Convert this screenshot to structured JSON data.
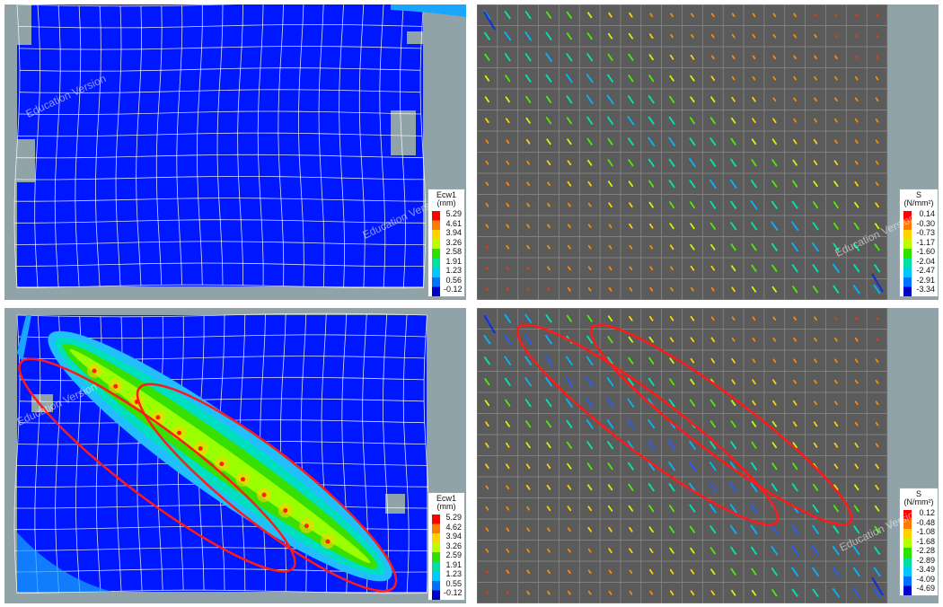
{
  "panels": [
    {
      "id": "top-left",
      "legend": {
        "title": "Ecw1",
        "unit": "(mm)",
        "values": [
          "5.29",
          "4.61",
          "3.94",
          "3.26",
          "2.58",
          "1.91",
          "1.23",
          "0.56",
          "-0.12"
        ]
      },
      "watermark": "Education Version"
    },
    {
      "id": "top-right",
      "legend": {
        "title": "S",
        "unit": "(N/mm²)",
        "values": [
          "0.14",
          "-0.30",
          "-0.73",
          "-1.17",
          "-1.60",
          "-2.04",
          "-2.47",
          "-2.91",
          "-3.34"
        ]
      },
      "watermark": "Education Version"
    },
    {
      "id": "bottom-left",
      "legend": {
        "title": "Ecw1",
        "unit": "(mm)",
        "values": [
          "5.29",
          "4.62",
          "3.94",
          "3.26",
          "2.59",
          "1.91",
          "1.23",
          "0.55",
          "-0.12"
        ]
      },
      "watermark": "Education Version"
    },
    {
      "id": "bottom-right",
      "legend": {
        "title": "S",
        "unit": "(N/mm²)",
        "values": [
          "0.12",
          "-0.48",
          "-1.08",
          "-1.68",
          "-2.28",
          "-2.89",
          "-3.49",
          "-4.09",
          "-4.69"
        ]
      },
      "watermark": "Education Version"
    }
  ],
  "colors": {
    "mesh_blue": "#0018ff",
    "background": "#8fa3a9",
    "dark_panel": "#5b5b5b",
    "highlight_ellipse": "#ff1a1a",
    "legend_scale": [
      "#ff0000",
      "#ff7a00",
      "#ffd200",
      "#b8ff00",
      "#2ee000",
      "#00e0a0",
      "#00c8ff",
      "#0070ff",
      "#0000c8"
    ]
  }
}
